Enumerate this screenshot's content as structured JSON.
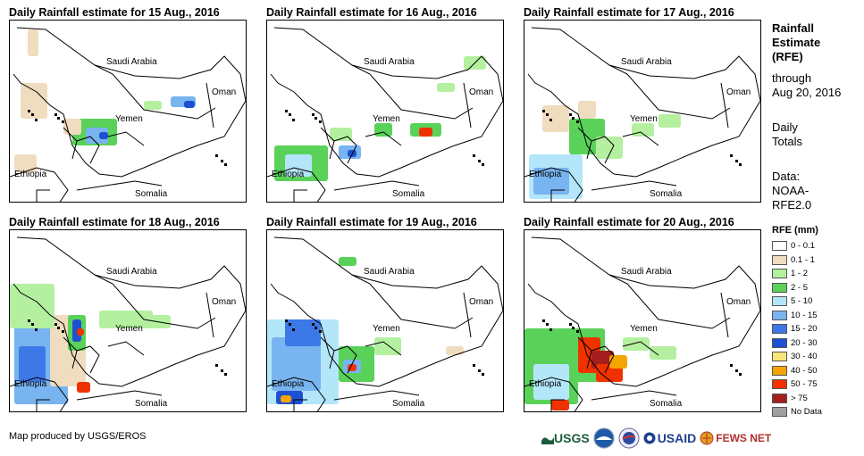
{
  "panels": [
    {
      "title": "Daily Rainfall estimate for 15 Aug., 2016"
    },
    {
      "title": "Daily Rainfall estimate for 16 Aug., 2016"
    },
    {
      "title": "Daily Rainfall estimate for 17 Aug., 2016"
    },
    {
      "title": "Daily Rainfall estimate for 18 Aug., 2016"
    },
    {
      "title": "Daily Rainfall estimate for 19 Aug., 2016"
    },
    {
      "title": "Daily Rainfall estimate for 20 Aug., 2016"
    }
  ],
  "map_labels": {
    "saudi": "Saudi Arabia",
    "oman": "Oman",
    "yemen": "Yemen",
    "ethiopia": "Ethiopia",
    "somalia": "Somalia"
  },
  "side": {
    "title_line1": "Rainfall",
    "title_line2": "Estimate",
    "title_line3": "(RFE)",
    "through": "through",
    "date": "Aug 20, 2016",
    "daily": "Daily",
    "totals": "Totals",
    "data_label": "Data:",
    "data_line2": "NOAA-",
    "data_line3": "RFE2.0"
  },
  "legend": {
    "title": "RFE (mm)",
    "items": [
      {
        "label": "0 - 0.1",
        "color": "#ffffff"
      },
      {
        "label": "0.1 - 1",
        "color": "#f0dcbe"
      },
      {
        "label": "1 - 2",
        "color": "#b4f0a0"
      },
      {
        "label": "2 - 5",
        "color": "#5ad25a"
      },
      {
        "label": "5 - 10",
        "color": "#b4e6fa"
      },
      {
        "label": "10 - 15",
        "color": "#78b4f0"
      },
      {
        "label": "15 - 20",
        "color": "#3c78e6"
      },
      {
        "label": "20 - 30",
        "color": "#1e50d2"
      },
      {
        "label": "30 - 40",
        "color": "#fae678"
      },
      {
        "label": "40 - 50",
        "color": "#f5a500"
      },
      {
        "label": "50 - 75",
        "color": "#f03200"
      },
      {
        "label": "> 75",
        "color": "#a51e1e"
      },
      {
        "label": "No Data",
        "color": "#a0a0a0"
      }
    ]
  },
  "footer": {
    "credit": "Map produced by USGS/EROS",
    "logo_usgs": "USGS",
    "logo_usaid": "USAID",
    "logo_fews": "FEWS NET"
  }
}
